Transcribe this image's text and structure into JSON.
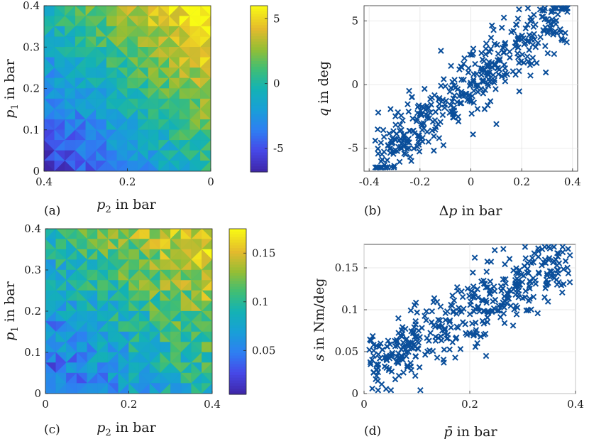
{
  "chart_data": [
    {
      "id": "a",
      "type": "heatmap",
      "panel_label": "(a)",
      "xlabel_var": "p",
      "xlabel_sub": "2",
      "xlabel_unit": " in bar",
      "ylabel_var": "p",
      "ylabel_sub": "1",
      "ylabel_unit": " in bar",
      "xlim": [
        0.4,
        0
      ],
      "ylim": [
        0,
        0.4
      ],
      "xticks": [
        "0.4",
        "0.2",
        "0"
      ],
      "yticks": [
        "0",
        "0.1",
        "0.2",
        "0.3",
        "0.4"
      ],
      "colorbar_range": [
        -6.8,
        6
      ],
      "colorbar_ticks": [
        "5",
        "0",
        "-5"
      ],
      "colorbar_tick_values": [
        5,
        0,
        -5
      ],
      "surface": "q increases with p1 and decreases with p2 (q ~ p1 - p2)"
    },
    {
      "id": "b",
      "type": "scatter",
      "panel_label": "(b)",
      "marker": "x",
      "color": "#0a4e9a",
      "xlabel_pre": "Δ",
      "xlabel_var": "p",
      "xlabel_unit": " in bar",
      "ylabel_var": "q",
      "ylabel_unit": " in deg",
      "xlim": [
        -0.42,
        0.42
      ],
      "ylim": [
        -6.8,
        6.2
      ],
      "xticks": [
        "-0.4",
        "-0.2",
        "0",
        "0.2",
        "0.4"
      ],
      "yticks": [
        "5",
        "0",
        "-5"
      ],
      "trend": {
        "slope_deg_per_bar": 16,
        "n_points": 420
      }
    },
    {
      "id": "c",
      "type": "heatmap",
      "panel_label": "(c)",
      "xlabel_var": "p",
      "xlabel_sub": "2",
      "xlabel_unit": " in bar",
      "ylabel_var": "p",
      "ylabel_sub": "1",
      "ylabel_unit": " in bar",
      "xlim": [
        0,
        0.4
      ],
      "ylim": [
        0,
        0.4
      ],
      "xticks": [
        "0",
        "0.2",
        "0.4"
      ],
      "yticks": [
        "0",
        "0.1",
        "0.2",
        "0.3",
        "0.4"
      ],
      "colorbar_range": [
        0.005,
        0.175
      ],
      "colorbar_ticks": [
        "0.15",
        "0.1",
        "0.05"
      ],
      "colorbar_tick_values": [
        0.15,
        0.1,
        0.05
      ],
      "surface": "s increases with mean pressure (p1 + p2)/2"
    },
    {
      "id": "d",
      "type": "scatter",
      "panel_label": "(d)",
      "marker": "x",
      "color": "#0a4e9a",
      "xlabel_var": "p̄",
      "xlabel_unit": " in bar",
      "ylabel_var": "s",
      "ylabel_unit": " in Nm/deg",
      "xlim": [
        0,
        0.4
      ],
      "ylim": [
        0,
        0.178
      ],
      "xticks": [
        "0",
        "0.2",
        "0.4"
      ],
      "yticks": [
        "0.15",
        "0.1",
        "0.05",
        "0"
      ],
      "trend": {
        "intercept": 0.03,
        "slope_per_bar": 0.33,
        "n_points": 420
      }
    }
  ]
}
